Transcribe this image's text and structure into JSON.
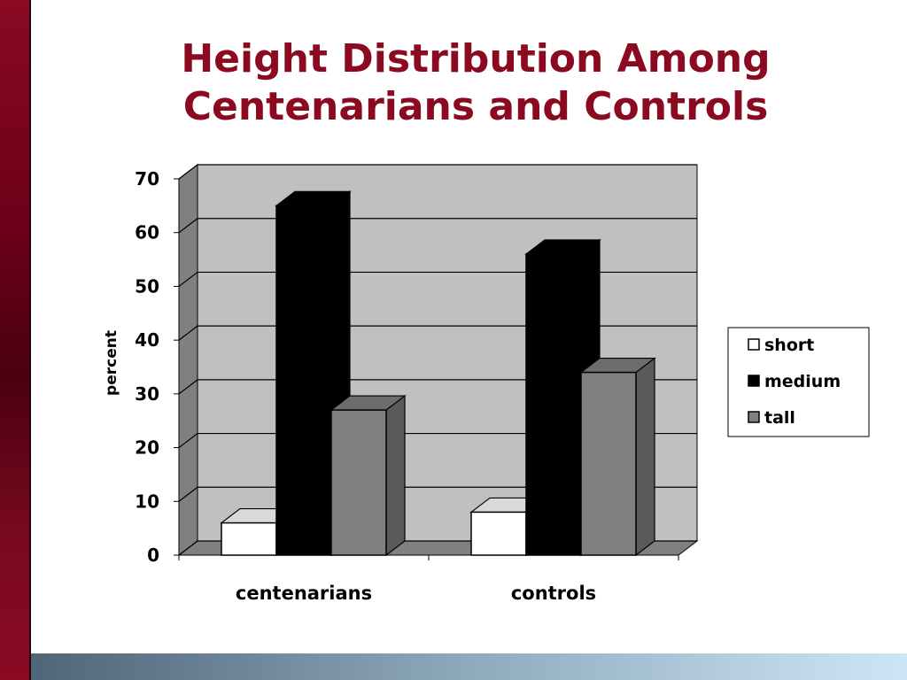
{
  "slide": {
    "title_line1": "Height Distribution Among",
    "title_line2": "Centenarians and Controls"
  },
  "colors": {
    "title": "#8b0a20",
    "short": "#ffffff",
    "medium": "#000000",
    "tall": "#808080",
    "plot_back": "#c0c0c0"
  },
  "chart_data": {
    "type": "bar",
    "style": "3d-clustered-column",
    "categories": [
      "centenarians",
      "controls"
    ],
    "series": [
      {
        "name": "short",
        "values": [
          6,
          8
        ]
      },
      {
        "name": "medium",
        "values": [
          65,
          56
        ]
      },
      {
        "name": "tall",
        "values": [
          27,
          34
        ]
      }
    ],
    "title": "",
    "xlabel": "",
    "ylabel": "percent",
    "ylim": [
      0,
      70
    ],
    "yticks": [
      0,
      10,
      20,
      30,
      40,
      50,
      60,
      70
    ],
    "grid": true,
    "legend": "right"
  }
}
